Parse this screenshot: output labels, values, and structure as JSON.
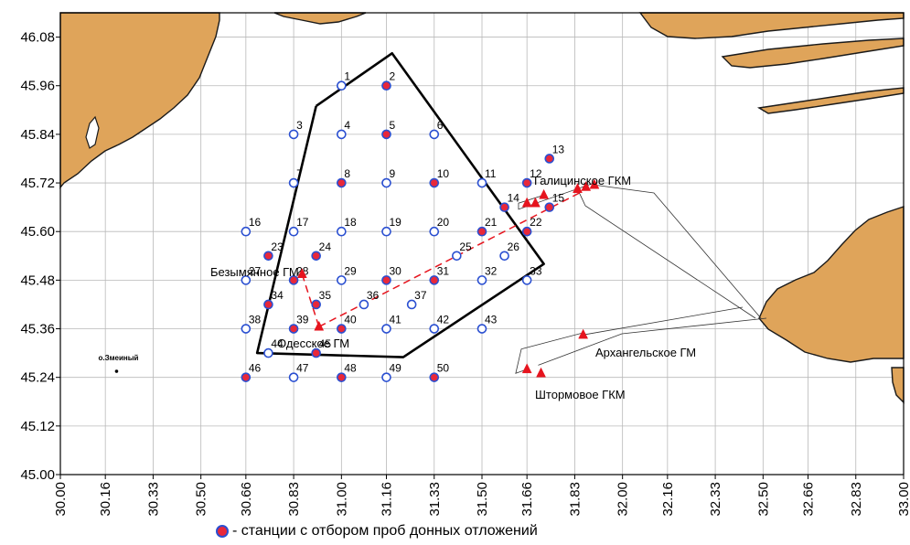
{
  "map": {
    "lon_ticks": [
      "30.00",
      "30.16",
      "30.33",
      "30.50",
      "30.66",
      "30.83",
      "31.00",
      "31.16",
      "31.33",
      "31.50",
      "31.66",
      "31.83",
      "32.00",
      "32.16",
      "32.33",
      "32.50",
      "32.66",
      "32.83",
      "33.00"
    ],
    "lat_ticks": [
      "45.00",
      "45.12",
      "45.24",
      "45.36",
      "45.48",
      "45.60",
      "45.72",
      "45.84",
      "45.96",
      "46.08"
    ],
    "lon_range": [
      30.0,
      33.0
    ],
    "lat_range": [
      45.0,
      46.14
    ],
    "colors": {
      "land": "#dfa45a",
      "coast": "#1a1a1a",
      "station_fill": "#e8283a",
      "station_stroke": "#2a4fd1",
      "triangle": "#e6141e",
      "route": "#e6141e",
      "grid": "#b9b9b9"
    },
    "stations": [
      {
        "n": "1",
        "lon": 31.0,
        "lat": 45.96,
        "sampled": false
      },
      {
        "n": "2",
        "lon": 31.16,
        "lat": 45.96,
        "sampled": true
      },
      {
        "n": "3",
        "lon": 30.83,
        "lat": 45.84,
        "sampled": false
      },
      {
        "n": "4",
        "lon": 31.0,
        "lat": 45.84,
        "sampled": false
      },
      {
        "n": "5",
        "lon": 31.16,
        "lat": 45.84,
        "sampled": true
      },
      {
        "n": "6",
        "lon": 31.33,
        "lat": 45.84,
        "sampled": false
      },
      {
        "n": "7",
        "lon": 30.83,
        "lat": 45.72,
        "sampled": false
      },
      {
        "n": "8",
        "lon": 31.0,
        "lat": 45.72,
        "sampled": true
      },
      {
        "n": "9",
        "lon": 31.16,
        "lat": 45.72,
        "sampled": false
      },
      {
        "n": "10",
        "lon": 31.33,
        "lat": 45.72,
        "sampled": true
      },
      {
        "n": "11",
        "lon": 31.5,
        "lat": 45.72,
        "sampled": false
      },
      {
        "n": "12",
        "lon": 31.66,
        "lat": 45.72,
        "sampled": true
      },
      {
        "n": "13",
        "lon": 31.74,
        "lat": 45.78,
        "sampled": true
      },
      {
        "n": "14",
        "lon": 31.58,
        "lat": 45.66,
        "sampled": true
      },
      {
        "n": "15",
        "lon": 31.74,
        "lat": 45.66,
        "sampled": true
      },
      {
        "n": "16",
        "lon": 30.66,
        "lat": 45.6,
        "sampled": false
      },
      {
        "n": "17",
        "lon": 30.83,
        "lat": 45.6,
        "sampled": false
      },
      {
        "n": "18",
        "lon": 31.0,
        "lat": 45.6,
        "sampled": false
      },
      {
        "n": "19",
        "lon": 31.16,
        "lat": 45.6,
        "sampled": false
      },
      {
        "n": "20",
        "lon": 31.33,
        "lat": 45.6,
        "sampled": false
      },
      {
        "n": "21",
        "lon": 31.5,
        "lat": 45.6,
        "sampled": true
      },
      {
        "n": "22",
        "lon": 31.66,
        "lat": 45.6,
        "sampled": true
      },
      {
        "n": "23",
        "lon": 30.74,
        "lat": 45.54,
        "sampled": true
      },
      {
        "n": "24",
        "lon": 30.91,
        "lat": 45.54,
        "sampled": true
      },
      {
        "n": "25",
        "lon": 31.41,
        "lat": 45.54,
        "sampled": false
      },
      {
        "n": "26",
        "lon": 31.58,
        "lat": 45.54,
        "sampled": false
      },
      {
        "n": "27",
        "lon": 30.66,
        "lat": 45.48,
        "sampled": false
      },
      {
        "n": "28",
        "lon": 30.83,
        "lat": 45.48,
        "sampled": true
      },
      {
        "n": "29",
        "lon": 31.0,
        "lat": 45.48,
        "sampled": false
      },
      {
        "n": "30",
        "lon": 31.16,
        "lat": 45.48,
        "sampled": true
      },
      {
        "n": "31",
        "lon": 31.33,
        "lat": 45.48,
        "sampled": true
      },
      {
        "n": "32",
        "lon": 31.5,
        "lat": 45.48,
        "sampled": false
      },
      {
        "n": "33",
        "lon": 31.66,
        "lat": 45.48,
        "sampled": false
      },
      {
        "n": "34",
        "lon": 30.74,
        "lat": 45.42,
        "sampled": true
      },
      {
        "n": "35",
        "lon": 30.91,
        "lat": 45.42,
        "sampled": true
      },
      {
        "n": "36",
        "lon": 31.08,
        "lat": 45.42,
        "sampled": false
      },
      {
        "n": "37",
        "lon": 31.25,
        "lat": 45.42,
        "sampled": false
      },
      {
        "n": "38",
        "lon": 30.66,
        "lat": 45.36,
        "sampled": false
      },
      {
        "n": "39",
        "lon": 30.83,
        "lat": 45.36,
        "sampled": true
      },
      {
        "n": "40",
        "lon": 31.0,
        "lat": 45.36,
        "sampled": true
      },
      {
        "n": "41",
        "lon": 31.16,
        "lat": 45.36,
        "sampled": false
      },
      {
        "n": "42",
        "lon": 31.33,
        "lat": 45.36,
        "sampled": false
      },
      {
        "n": "43",
        "lon": 31.5,
        "lat": 45.36,
        "sampled": false
      },
      {
        "n": "44",
        "lon": 30.74,
        "lat": 45.3,
        "sampled": false
      },
      {
        "n": "45",
        "lon": 30.91,
        "lat": 45.3,
        "sampled": true
      },
      {
        "n": "46",
        "lon": 30.66,
        "lat": 45.24,
        "sampled": true
      },
      {
        "n": "47",
        "lon": 30.83,
        "lat": 45.24,
        "sampled": false
      },
      {
        "n": "48",
        "lon": 31.0,
        "lat": 45.24,
        "sampled": true
      },
      {
        "n": "49",
        "lon": 31.16,
        "lat": 45.24,
        "sampled": false
      },
      {
        "n": "50",
        "lon": 31.33,
        "lat": 45.24,
        "sampled": true
      }
    ],
    "polygon": [
      [
        30.91,
        45.91
      ],
      [
        31.18,
        46.04
      ],
      [
        31.72,
        45.52
      ],
      [
        31.22,
        45.29
      ],
      [
        30.7,
        45.3
      ],
      [
        30.91,
        45.91
      ]
    ],
    "fields": [
      {
        "name": "Безымянное ГМ",
        "triangles": [
          [
            30.86,
            45.495
          ]
        ]
      },
      {
        "name": "Одесское ГМ",
        "triangles": [
          [
            30.92,
            45.365
          ]
        ]
      },
      {
        "name": "Галицинское ГКМ",
        "triangles": [
          [
            31.66,
            45.67
          ],
          [
            31.69,
            45.67
          ],
          [
            31.72,
            45.69
          ],
          [
            31.84,
            45.705
          ],
          [
            31.87,
            45.71
          ],
          [
            31.9,
            45.715
          ]
        ]
      },
      {
        "name": "Архангельское ГМ",
        "triangles": [
          [
            31.86,
            45.345
          ]
        ]
      },
      {
        "name": "Штормовое ГКМ",
        "triangles": [
          [
            31.66,
            45.26
          ],
          [
            31.71,
            45.25
          ]
        ]
      }
    ],
    "routes": [
      [
        [
          30.92,
          45.365
        ],
        [
          31.86,
          45.7
        ]
      ],
      [
        [
          30.86,
          45.495
        ],
        [
          30.92,
          45.365
        ]
      ]
    ],
    "island": {
      "label": "о.Змеиный",
      "lon": 30.2,
      "lat": 45.255
    }
  },
  "legend": {
    "text": "- станции с отбором проб донных отложений"
  }
}
